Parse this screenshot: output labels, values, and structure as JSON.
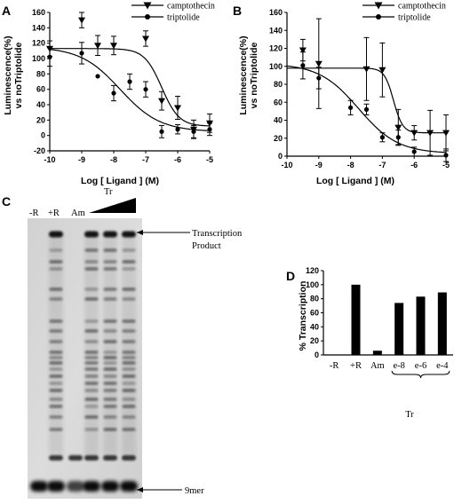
{
  "panels": {
    "A": "A",
    "B": "B",
    "C": "C",
    "D": "D"
  },
  "chart_data": [
    {
      "id": "A",
      "type": "scatter",
      "xlabel": "Log [ Ligand ]   (M)",
      "ylabel_lines": [
        "Luminescence(%)",
        "vs noTriptolide"
      ],
      "xlim": [
        -10,
        -5
      ],
      "ylim": [
        -20,
        160
      ],
      "xticks": [
        -10,
        -9,
        -8,
        -7,
        -6,
        -5
      ],
      "yticks": [
        -20,
        0,
        20,
        40,
        60,
        80,
        100,
        120,
        140,
        160
      ],
      "legend": "top-right",
      "series": [
        {
          "name": "camptothecin",
          "marker": "triangle-down",
          "points": [
            {
              "x": -10,
              "y": 113,
              "err": 10
            },
            {
              "x": -9,
              "y": 150,
              "err": 10
            },
            {
              "x": -8.5,
              "y": 117,
              "err": 13
            },
            {
              "x": -8,
              "y": 117,
              "err": 12
            },
            {
              "x": -7,
              "y": 126,
              "err": 10
            },
            {
              "x": -6.5,
              "y": 45,
              "err": 12
            },
            {
              "x": -6,
              "y": 36,
              "err": 15
            },
            {
              "x": -5.5,
              "y": 8,
              "err": 12
            },
            {
              "x": -5,
              "y": 16,
              "err": 12
            }
          ],
          "curve": {
            "top": 113,
            "bottom": 12,
            "logec50": -6.5,
            "hill": 1.6
          }
        },
        {
          "name": "triptolide",
          "marker": "circle",
          "points": [
            {
              "x": -10,
              "y": 102,
              "err": 12
            },
            {
              "x": -9,
              "y": 107,
              "err": 14
            },
            {
              "x": -8.5,
              "y": 77,
              "err": 0
            },
            {
              "x": -8,
              "y": 55,
              "err": 10
            },
            {
              "x": -7.5,
              "y": 70,
              "err": 10
            },
            {
              "x": -7,
              "y": 60,
              "err": 10
            },
            {
              "x": -6.5,
              "y": 5,
              "err": 8
            },
            {
              "x": -6,
              "y": 8,
              "err": 6
            },
            {
              "x": -5.5,
              "y": 5,
              "err": 8
            },
            {
              "x": -5,
              "y": 8,
              "err": 8
            }
          ],
          "curve": {
            "top": 115,
            "bottom": 5,
            "logec50": -7.8,
            "hill": 0.7
          }
        }
      ]
    },
    {
      "id": "B",
      "type": "scatter",
      "xlabel": "Log [ Ligand ]   (M)",
      "ylabel_lines": [
        "Luminescence(%)",
        "vs noTriptolide"
      ],
      "xlim": [
        -10,
        -5
      ],
      "ylim": [
        0,
        160
      ],
      "xticks": [
        -10,
        -9,
        -8,
        -7,
        -6,
        -5
      ],
      "yticks": [
        0,
        20,
        40,
        60,
        80,
        100,
        120,
        140,
        160
      ],
      "legend": "top-right",
      "series": [
        {
          "name": "camptothecin",
          "marker": "triangle-down",
          "points": [
            {
              "x": -9.5,
              "y": 118,
              "err": 12
            },
            {
              "x": -9,
              "y": 103,
              "err": 50
            },
            {
              "x": -7.5,
              "y": 97,
              "err": 35
            },
            {
              "x": -7,
              "y": 96,
              "err": 30
            },
            {
              "x": -6.5,
              "y": 32,
              "err": 20
            },
            {
              "x": -6,
              "y": 26,
              "err": 8
            },
            {
              "x": -5.5,
              "y": 26,
              "err": 25
            },
            {
              "x": -5,
              "y": 26,
              "err": 20
            }
          ],
          "curve": {
            "top": 98,
            "bottom": 26,
            "logec50": -6.65,
            "hill": 3
          }
        },
        {
          "name": "triptolide",
          "marker": "circle",
          "points": [
            {
              "x": -9.5,
              "y": 101,
              "err": 15
            },
            {
              "x": -9,
              "y": 87,
              "err": 12
            },
            {
              "x": -8,
              "y": 54,
              "err": 8
            },
            {
              "x": -7.5,
              "y": 52,
              "err": 6
            },
            {
              "x": -7,
              "y": 21,
              "err": 5
            },
            {
              "x": -6.5,
              "y": 21,
              "err": 8
            },
            {
              "x": -6,
              "y": 5,
              "err": 5
            },
            {
              "x": -5,
              "y": 1,
              "err": 7
            }
          ],
          "curve": {
            "top": 103,
            "bottom": 3,
            "logec50": -7.75,
            "hill": 0.7
          }
        }
      ]
    },
    {
      "id": "D",
      "type": "bar",
      "ylabel": "% Transcription",
      "ylim": [
        0,
        120
      ],
      "yticks": [
        0,
        20,
        40,
        60,
        80,
        100,
        120
      ],
      "categories": [
        "-R",
        "+R",
        "Am",
        "e-8",
        "e-6",
        "e-4"
      ],
      "values": [
        0,
        100,
        6,
        74,
        83,
        89
      ],
      "group_label": "Tr"
    }
  ],
  "gel": {
    "lane_labels": [
      "-R",
      "+R",
      "Am"
    ],
    "wedge_label": "Tr",
    "annotation_top_lines": [
      "Transcription",
      "Product"
    ],
    "annotation_bottom": "9mer"
  }
}
